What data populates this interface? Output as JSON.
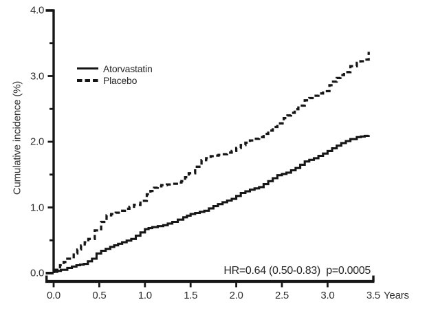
{
  "figure": {
    "background": "#ffffff",
    "ink_color": "#161616",
    "text_color": "#2e2e2e"
  },
  "chart_data": {
    "type": "line",
    "subtype": "cumulative-incidence-step-curves",
    "title": "",
    "xlabel": "Years",
    "ylabel": "Cumulative incidence (%)",
    "xlim": [
      0,
      3.5
    ],
    "ylim": [
      0,
      4.0
    ],
    "x_tick_labels": [
      "0.0",
      "0.5",
      "1.0",
      "1.5",
      "2.0",
      "2.5",
      "3.0",
      "3.5"
    ],
    "y_tick_labels": [
      "0.0",
      "1.0",
      "2.0",
      "3.0",
      "4.0"
    ],
    "y_minor_ticks": [
      0.5,
      1.5,
      2.5,
      3.5
    ],
    "grid": false,
    "legend_position": "upper left inside",
    "annotation": "HR=0.64 (0.50-0.83)  p=0.0005",
    "series": [
      {
        "name": "Atorvastatin",
        "style": "solid",
        "color": "#161616",
        "points": [
          [
            0,
            0.02
          ],
          [
            0.08,
            0.05
          ],
          [
            0.15,
            0.08
          ],
          [
            0.25,
            0.12
          ],
          [
            0.33,
            0.14
          ],
          [
            0.42,
            0.22
          ],
          [
            0.47,
            0.3
          ],
          [
            0.52,
            0.34
          ],
          [
            0.62,
            0.4
          ],
          [
            0.75,
            0.47
          ],
          [
            0.85,
            0.52
          ],
          [
            0.95,
            0.62
          ],
          [
            1.0,
            0.67
          ],
          [
            1.08,
            0.7
          ],
          [
            1.2,
            0.73
          ],
          [
            1.3,
            0.78
          ],
          [
            1.42,
            0.85
          ],
          [
            1.5,
            0.9
          ],
          [
            1.65,
            0.95
          ],
          [
            1.75,
            1.02
          ],
          [
            1.85,
            1.08
          ],
          [
            1.95,
            1.13
          ],
          [
            2.05,
            1.22
          ],
          [
            2.15,
            1.27
          ],
          [
            2.25,
            1.31
          ],
          [
            2.35,
            1.4
          ],
          [
            2.45,
            1.49
          ],
          [
            2.55,
            1.53
          ],
          [
            2.65,
            1.6
          ],
          [
            2.75,
            1.7
          ],
          [
            2.85,
            1.75
          ],
          [
            2.95,
            1.82
          ],
          [
            3.05,
            1.9
          ],
          [
            3.15,
            1.98
          ],
          [
            3.25,
            2.04
          ],
          [
            3.32,
            2.07
          ],
          [
            3.45,
            2.1
          ]
        ]
      },
      {
        "name": "Placebo",
        "style": "dashed",
        "color": "#161616",
        "points": [
          [
            0,
            0.05
          ],
          [
            0.07,
            0.12
          ],
          [
            0.15,
            0.22
          ],
          [
            0.22,
            0.3
          ],
          [
            0.3,
            0.42
          ],
          [
            0.38,
            0.52
          ],
          [
            0.45,
            0.65
          ],
          [
            0.52,
            0.78
          ],
          [
            0.58,
            0.88
          ],
          [
            0.68,
            0.92
          ],
          [
            0.78,
            0.98
          ],
          [
            0.88,
            1.04
          ],
          [
            0.95,
            1.1
          ],
          [
            1.02,
            1.2
          ],
          [
            1.1,
            1.3
          ],
          [
            1.18,
            1.34
          ],
          [
            1.3,
            1.36
          ],
          [
            1.4,
            1.4
          ],
          [
            1.48,
            1.52
          ],
          [
            1.55,
            1.62
          ],
          [
            1.62,
            1.72
          ],
          [
            1.72,
            1.78
          ],
          [
            1.85,
            1.81
          ],
          [
            1.95,
            1.86
          ],
          [
            2.05,
            1.95
          ],
          [
            2.15,
            2.02
          ],
          [
            2.25,
            2.07
          ],
          [
            2.35,
            2.17
          ],
          [
            2.45,
            2.28
          ],
          [
            2.52,
            2.36
          ],
          [
            2.6,
            2.44
          ],
          [
            2.68,
            2.55
          ],
          [
            2.75,
            2.63
          ],
          [
            2.85,
            2.7
          ],
          [
            2.95,
            2.77
          ],
          [
            3.02,
            2.86
          ],
          [
            3.1,
            2.97
          ],
          [
            3.18,
            3.06
          ],
          [
            3.25,
            3.15
          ],
          [
            3.32,
            3.2
          ],
          [
            3.4,
            3.25
          ],
          [
            3.45,
            3.37
          ]
        ]
      }
    ]
  }
}
